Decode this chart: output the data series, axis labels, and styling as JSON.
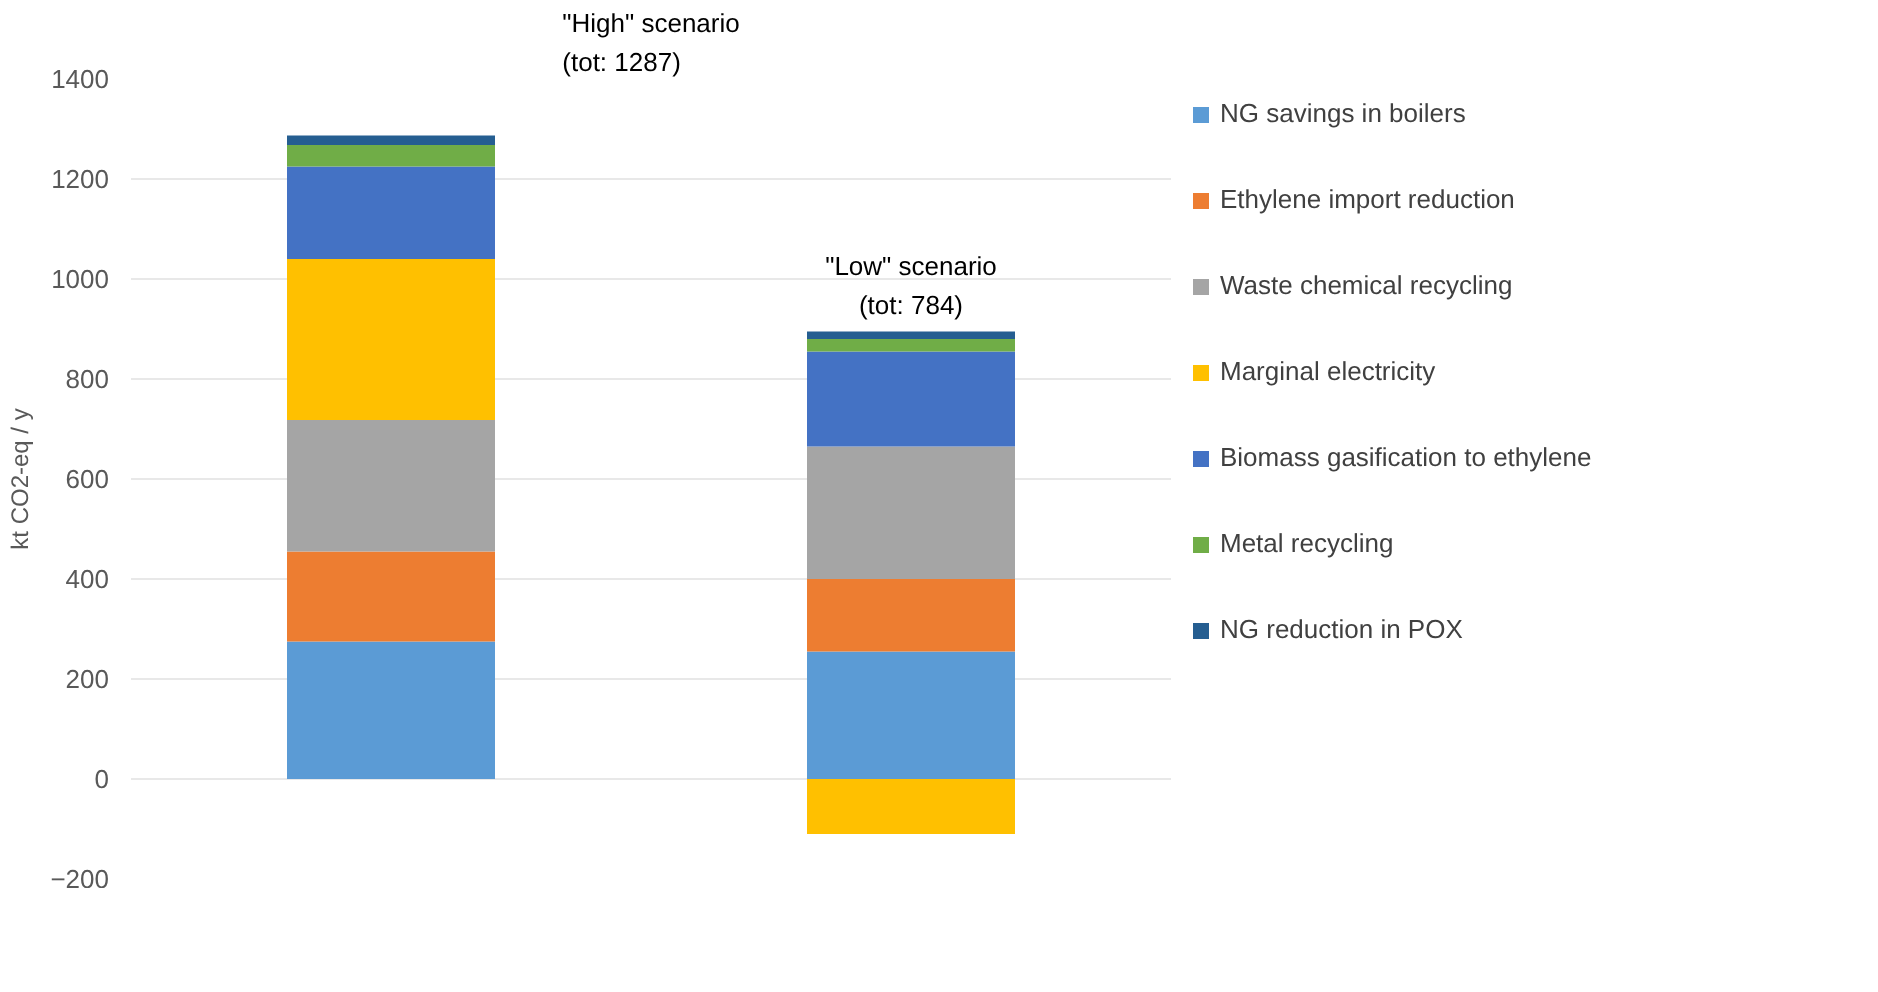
{
  "chart_data": {
    "type": "bar",
    "stacked": true,
    "categories": [
      null,
      null
    ],
    "ylabel": "kt CO2-eq / y",
    "ylim": [
      -200,
      1400
    ],
    "yticks": [
      -200,
      0,
      200,
      400,
      600,
      800,
      1000,
      1200,
      1400
    ],
    "grid": "y",
    "legend": "right",
    "annotations": [
      "\"High\" scenario\n(tot: 1287)",
      "\"Low\" scenario\n(tot: 784)"
    ],
    "series": [
      {
        "name": "NG savings in boilers",
        "color": "#5b9bd5",
        "values": [
          275,
          255
        ]
      },
      {
        "name": "Ethylene import reduction",
        "color": "#ed7d31",
        "values": [
          180,
          145
        ]
      },
      {
        "name": "Waste chemical recycling",
        "color": "#a5a5a5",
        "values": [
          263,
          265
        ]
      },
      {
        "name": "Marginal electricity",
        "color": "#ffc000",
        "values": [
          322,
          -110
        ]
      },
      {
        "name": "Biomass gasification to ethylene",
        "color": "#4472c4",
        "values": [
          185,
          190
        ]
      },
      {
        "name": "Metal recycling",
        "color": "#70ad47",
        "values": [
          43,
          25
        ]
      },
      {
        "name": "NG reduction in POX",
        "color": "#255e91",
        "values": [
          19,
          15
        ]
      }
    ]
  }
}
